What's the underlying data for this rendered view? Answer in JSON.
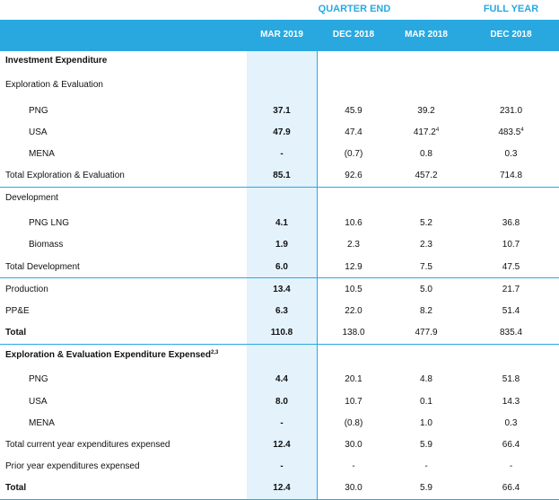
{
  "header": {
    "group_quarter": "QUARTER END",
    "group_full_year": "FULL YEAR",
    "columns": [
      "MAR 2019",
      "DEC 2018",
      "MAR 2018",
      "DEC 2018"
    ]
  },
  "colors": {
    "accent": "#29a8e0",
    "highlight_column": "#e3f2fb"
  },
  "rows": [
    {
      "label": "Investment Expenditure",
      "bold": true,
      "indent": false,
      "values": [
        "",
        "",
        "",
        ""
      ]
    },
    {
      "label": "Exploration & Evaluation",
      "bold": false,
      "indent": false,
      "values": [
        "",
        "",
        "",
        ""
      ]
    },
    {
      "label": "PNG",
      "bold": false,
      "indent": true,
      "values": [
        "37.1",
        "45.9",
        "39.2",
        "231.0"
      ]
    },
    {
      "label": "USA",
      "bold": false,
      "indent": true,
      "values": [
        "47.9",
        "47.4",
        "417.2",
        "483.5"
      ],
      "sups": [
        "",
        "",
        "4",
        "4"
      ]
    },
    {
      "label": "MENA",
      "bold": false,
      "indent": true,
      "values": [
        "-",
        "(0.7)",
        "0.8",
        "0.3"
      ]
    },
    {
      "label": "Total Exploration & Evaluation",
      "bold": false,
      "indent": false,
      "values": [
        "85.1",
        "92.6",
        "457.2",
        "714.8"
      ]
    },
    {
      "label": "Development",
      "bold": false,
      "indent": false,
      "values": [
        "",
        "",
        "",
        ""
      ]
    },
    {
      "label": "PNG LNG",
      "bold": false,
      "indent": true,
      "values": [
        "4.1",
        "10.6",
        "5.2",
        "36.8"
      ]
    },
    {
      "label": "Biomass",
      "bold": false,
      "indent": true,
      "values": [
        "1.9",
        "2.3",
        "2.3",
        "10.7"
      ]
    },
    {
      "label": "Total Development",
      "bold": false,
      "indent": false,
      "values": [
        "6.0",
        "12.9",
        "7.5",
        "47.5"
      ]
    },
    {
      "label": "Production",
      "bold": false,
      "indent": false,
      "values": [
        "13.4",
        "10.5",
        "5.0",
        "21.7"
      ]
    },
    {
      "label": "PP&E",
      "bold": false,
      "indent": false,
      "values": [
        "6.3",
        "22.0",
        "8.2",
        "51.4"
      ]
    },
    {
      "label": "Total",
      "bold": true,
      "indent": false,
      "values": [
        "110.8",
        "138.0",
        "477.9",
        "835.4"
      ]
    },
    {
      "label": "Exploration & Evaluation Expenditure Expensed",
      "label_sup": "2,3",
      "bold": true,
      "indent": false,
      "values": [
        "",
        "",
        "",
        ""
      ]
    },
    {
      "label": "PNG",
      "bold": false,
      "indent": true,
      "values": [
        "4.4",
        "20.1",
        "4.8",
        "51.8"
      ]
    },
    {
      "label": "USA",
      "bold": false,
      "indent": true,
      "values": [
        "8.0",
        "10.7",
        "0.1",
        "14.3"
      ]
    },
    {
      "label": "MENA",
      "bold": false,
      "indent": true,
      "values": [
        "-",
        "(0.8)",
        "1.0",
        "0.3"
      ]
    },
    {
      "label": "Total current year expenditures expensed",
      "bold": false,
      "indent": false,
      "values": [
        "12.4",
        "30.0",
        "5.9",
        "66.4"
      ]
    },
    {
      "label": "Prior year expenditures expensed",
      "bold": false,
      "indent": false,
      "values": [
        "-",
        "-",
        "-",
        "-"
      ]
    },
    {
      "label": "Total",
      "bold": true,
      "indent": false,
      "values": [
        "12.4",
        "30.0",
        "5.9",
        "66.4"
      ]
    }
  ]
}
